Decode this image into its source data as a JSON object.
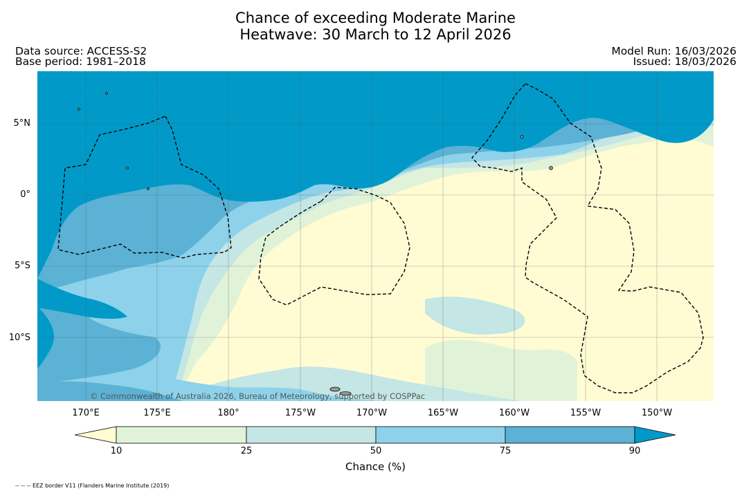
{
  "title": {
    "line1": "Chance of exceeding Moderate Marine",
    "line2": "Heatwave: 30 March to 12 April 2026"
  },
  "meta": {
    "data_source": "Data source: ACCESS-S2",
    "base_period": "Base period: 1981–2018",
    "model_run": "Model Run: 16/03/2026",
    "issued": "Issued: 18/03/2026"
  },
  "map": {
    "lat_ticks": [
      "5°N",
      "0°",
      "5°S",
      "10°S"
    ],
    "lon_ticks": [
      "170°E",
      "175°E",
      "180°",
      "175°W",
      "170°W",
      "165°W",
      "160°W",
      "155°W",
      "150°W"
    ],
    "copyright": "© Commonwealth of Australia 2026, Bureau of Meteorology, supported by COSPPac",
    "colors": {
      "lt10": "#fffcd4",
      "c10_25": "#e0f3d8",
      "c25_50": "#c4e6e4",
      "c50_75": "#8dd2ea",
      "c75_90": "#5bb2d4",
      "gt90": "#019ac8"
    }
  },
  "colorbar": {
    "labels": [
      "10",
      "25",
      "50",
      "75",
      "90"
    ],
    "title": "Chance (%)"
  },
  "footnote": "-- -- -- EEZ border V11 (Flanders Marine Institute (2019)"
}
